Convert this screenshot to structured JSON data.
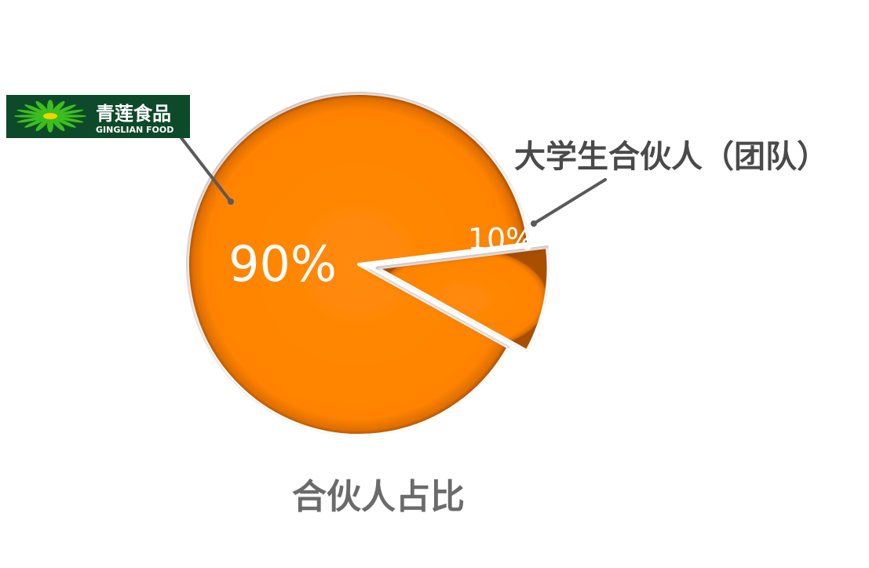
{
  "chart_data": {
    "type": "pie",
    "title": "合伙人占比",
    "slices": [
      {
        "value": 90,
        "label": "90%",
        "category": "青莲食品",
        "category_en": "GINGLIAN FOOD",
        "exploded": false
      },
      {
        "value": 10,
        "label": "10%",
        "category": "大学生合伙人（团队）",
        "exploded": true
      }
    ],
    "start_angle_deg": 7,
    "direction": "counterclockwise",
    "legend": "none"
  },
  "colors": {
    "slice": "#ff8300",
    "slice_edge": "#c45f00",
    "leader_line": "#5a5a5a",
    "logo_bg": "#0d4a2a",
    "logo_flower": "#3cbf1e",
    "logo_center": "#f2d300",
    "label_text": "#4a4a4a",
    "title_text": "#6b6b6b"
  },
  "icons": {
    "logo": "qinglian-flower-icon"
  }
}
